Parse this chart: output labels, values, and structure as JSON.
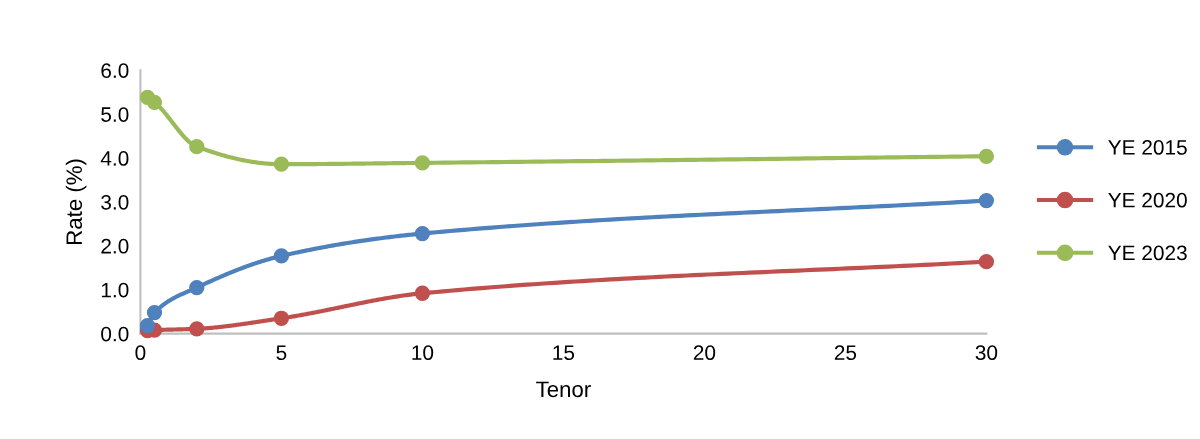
{
  "chart_data": {
    "type": "line",
    "xlabel": "Tenor",
    "ylabel": "Rate (%)",
    "x": [
      0.25,
      0.5,
      2,
      5,
      10,
      30
    ],
    "series": [
      {
        "name": "YE 2015",
        "color": "#4f81bd",
        "values": [
          0.18,
          0.48,
          1.05,
          1.77,
          2.28,
          3.03
        ]
      },
      {
        "name": "YE 2020",
        "color": "#c0504d",
        "values": [
          0.07,
          0.08,
          0.11,
          0.35,
          0.92,
          1.64
        ]
      },
      {
        "name": "YE 2023",
        "color": "#9bbb59",
        "values": [
          5.38,
          5.27,
          4.26,
          3.86,
          3.89,
          4.04
        ]
      }
    ],
    "xlim": [
      0,
      30
    ],
    "xticks": [
      0,
      5,
      10,
      15,
      20,
      25,
      30
    ],
    "ylim": [
      0,
      6
    ],
    "yticks": [
      {
        "value": 0,
        "label": "0.0"
      },
      {
        "value": 1,
        "label": "1.0"
      },
      {
        "value": 2,
        "label": "2.0"
      },
      {
        "value": 3,
        "label": "3.0"
      },
      {
        "value": 4,
        "label": "4.0"
      },
      {
        "value": 5,
        "label": "5.0"
      },
      {
        "value": 6,
        "label": "6.0"
      }
    ],
    "grid": false,
    "legend": "right",
    "marker": "circle",
    "line_style": "solid"
  }
}
